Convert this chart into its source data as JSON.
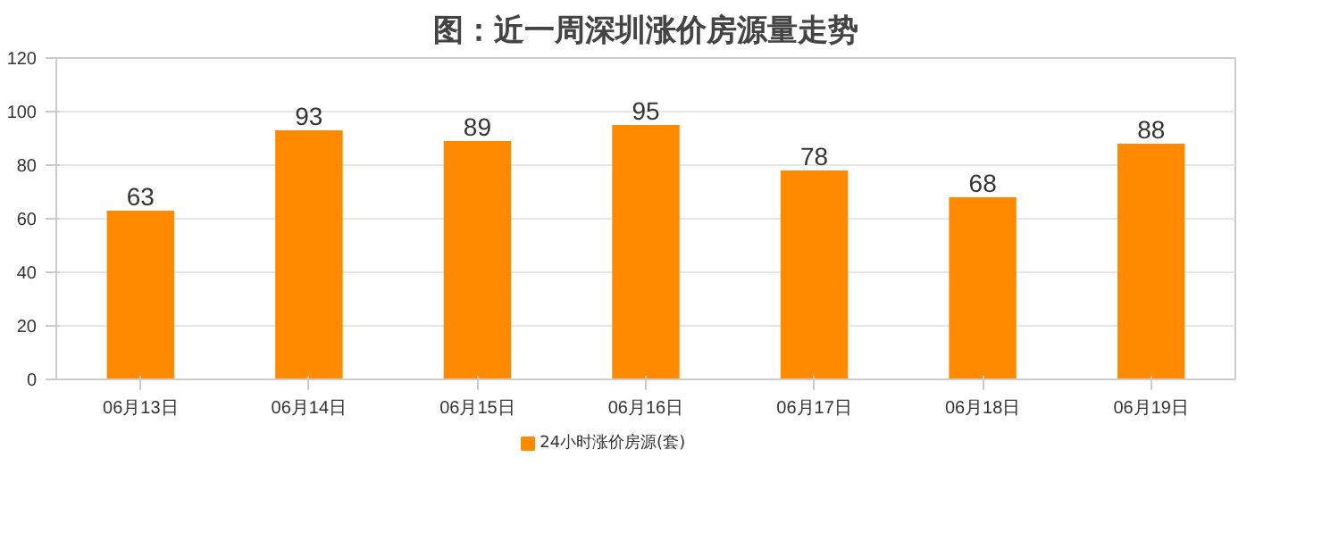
{
  "chart_data": {
    "type": "bar",
    "title": "图：近一周深圳涨价房源量走势",
    "categories": [
      "06月13日",
      "06月14日",
      "06月15日",
      "06月16日",
      "06月17日",
      "06月18日",
      "06月19日"
    ],
    "series": [
      {
        "name": "24小时涨价房源(套)",
        "color": "#ff8a00",
        "values": [
          63,
          93,
          89,
          95,
          78,
          68,
          88
        ]
      }
    ],
    "ylim": [
      0,
      120
    ],
    "yticks": [
      0,
      20,
      40,
      60,
      80,
      100,
      120
    ],
    "grid": "y",
    "data_labels": true,
    "legend": "bottom"
  }
}
